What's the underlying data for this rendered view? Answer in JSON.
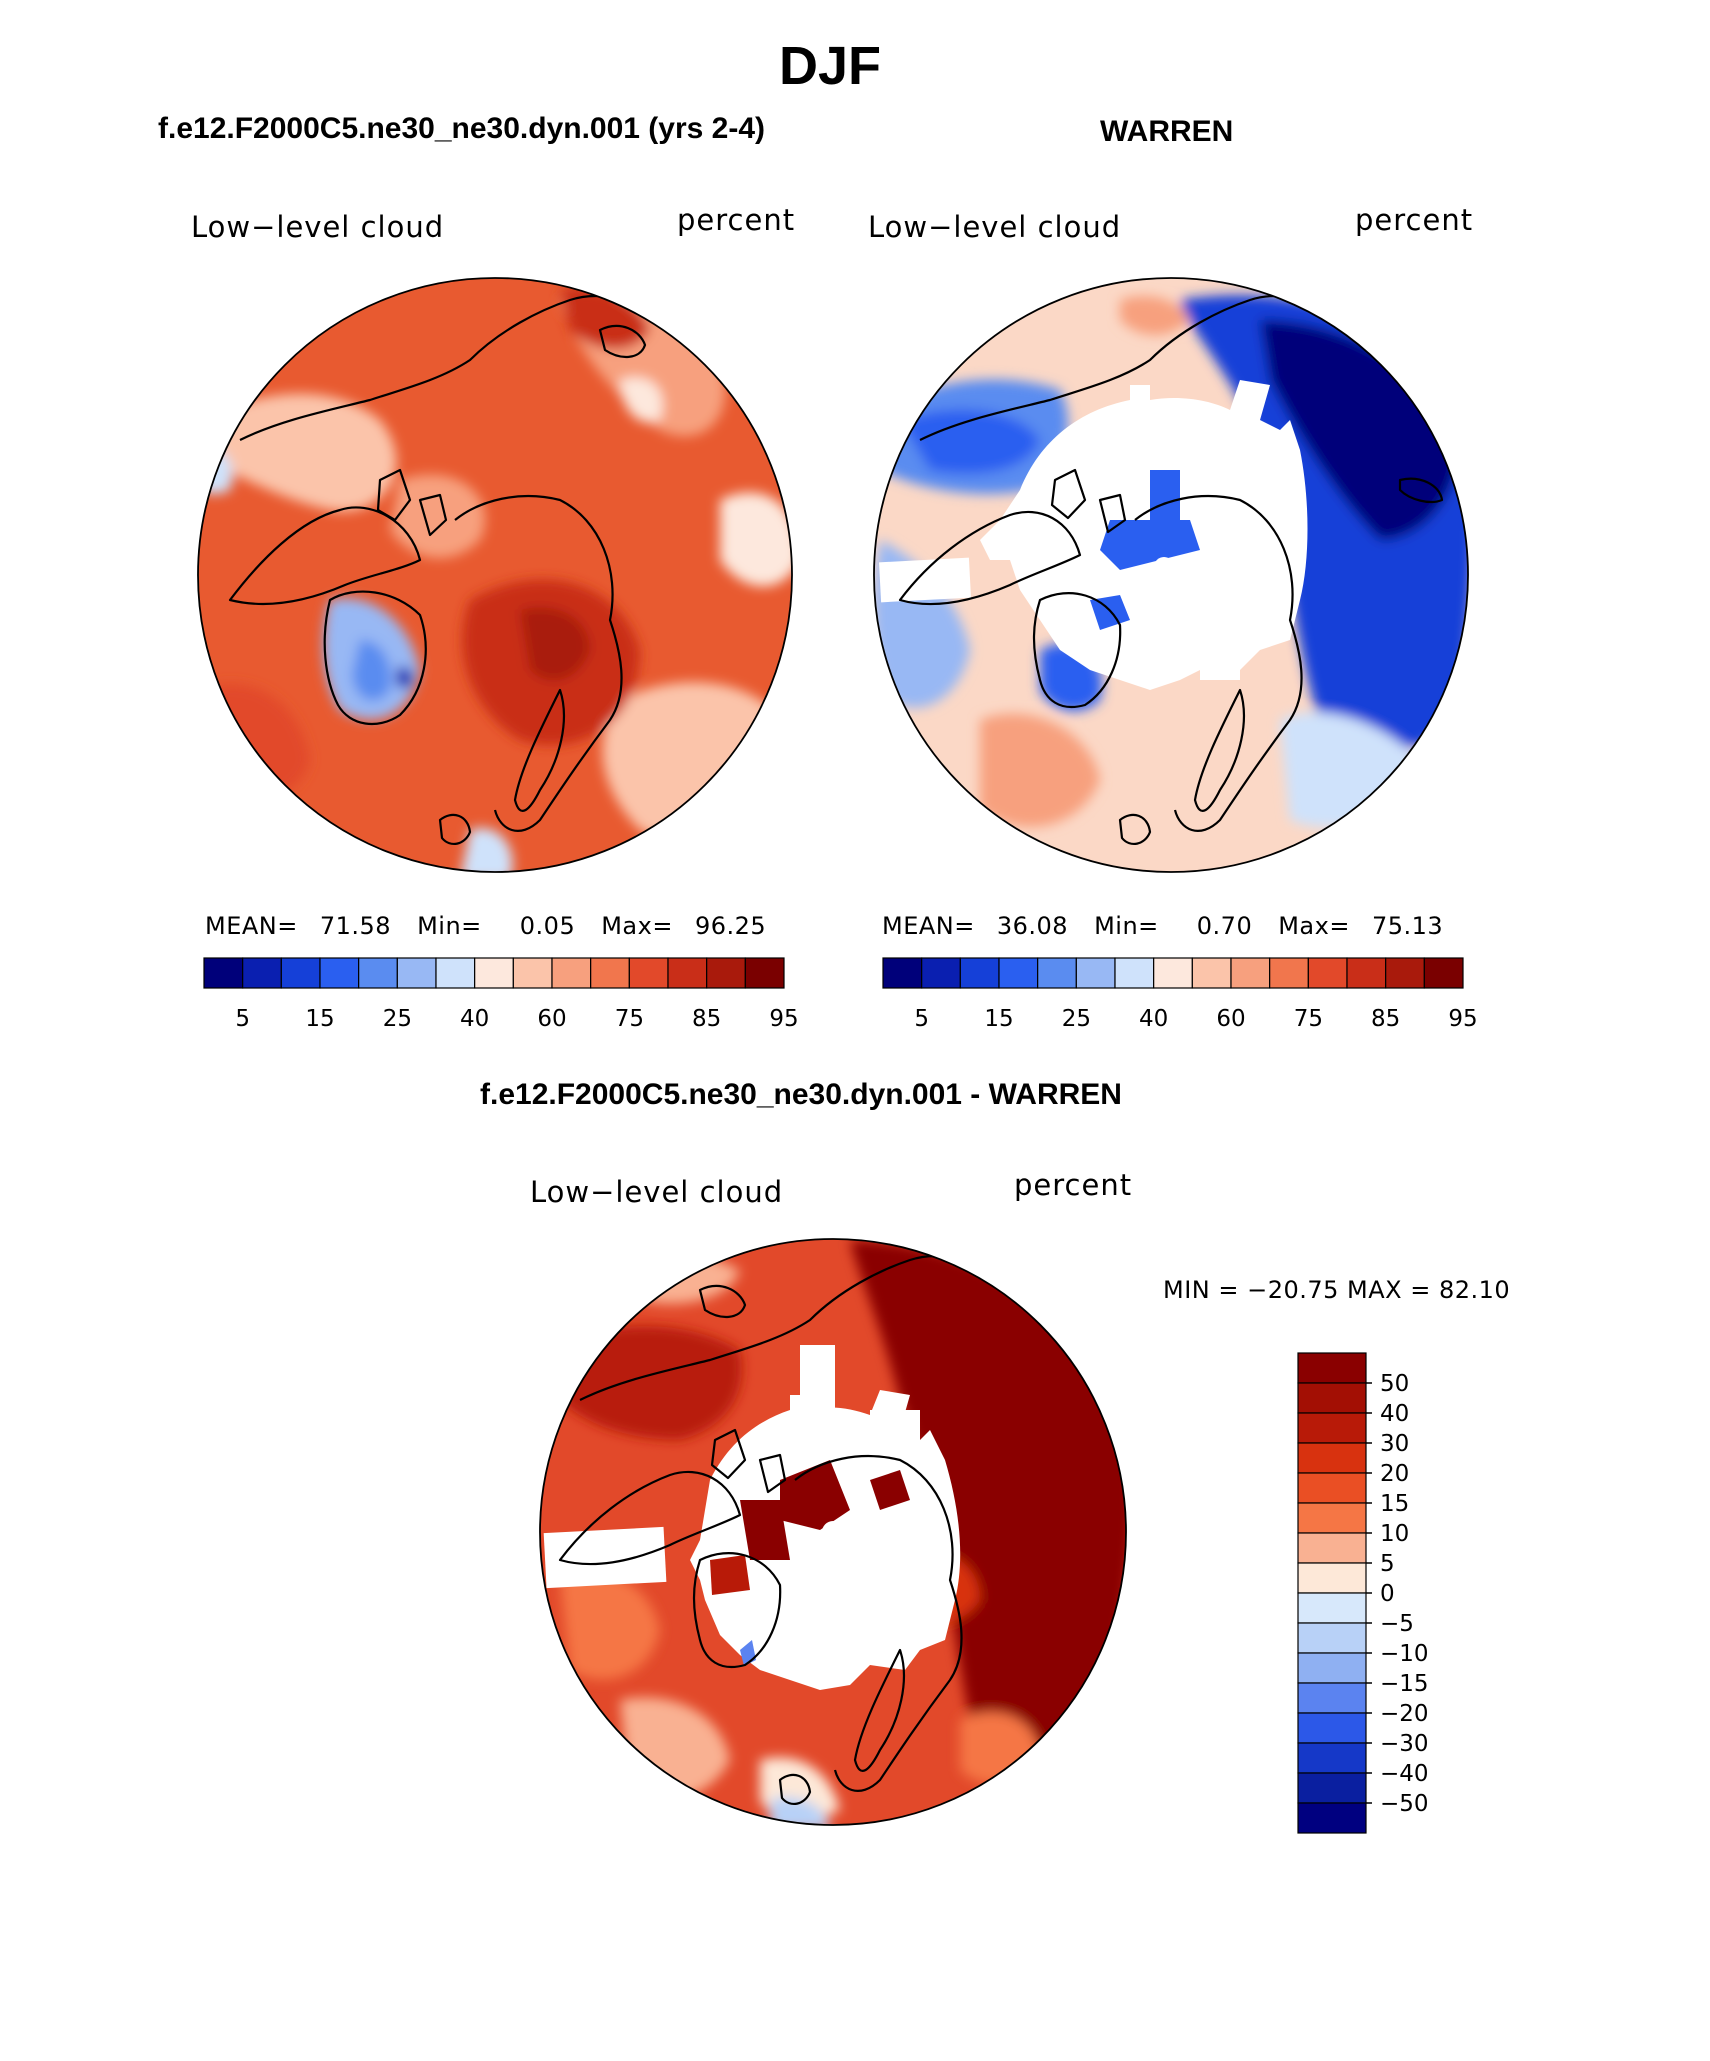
{
  "title": "DJF",
  "panels": [
    {
      "title": "f.e12.F2000C5.ne30_ne30.dyn.001 (yrs 2-4)",
      "left_label": "Low−level cloud",
      "right_label": "percent",
      "stats": {
        "mean_label": "MEAN=",
        "mean": "71.58",
        "min_label": "Min=",
        "min": "0.05",
        "max_label": "Max=",
        "max": "96.25"
      }
    },
    {
      "title": "WARREN",
      "left_label": "Low−level cloud",
      "right_label": "percent",
      "stats": {
        "mean_label": "MEAN=",
        "mean": "36.08",
        "min_label": "Min=",
        "min": "0.70",
        "max_label": "Max=",
        "max": "75.13"
      }
    },
    {
      "title": "f.e12.F2000C5.ne30_ne30.dyn.001 - WARREN",
      "left_label": "Low−level cloud",
      "right_label": "percent",
      "stats": {
        "text": "MIN = −20.75 MAX =   82.10"
      }
    }
  ],
  "colorbar_abs": {
    "tick_labels": [
      "5",
      "15",
      "25",
      "40",
      "60",
      "75",
      "85",
      "95"
    ],
    "colors": [
      "#00007a",
      "#0a1fb0",
      "#1540d8",
      "#2a5ff0",
      "#5a8cf0",
      "#98b8f4",
      "#cfe2fb",
      "#fde8dd",
      "#fbc4aa",
      "#f7a07e",
      "#f1764d",
      "#e2492a",
      "#c92e18",
      "#a91a0c",
      "#7a0000"
    ]
  },
  "colorbar_diff": {
    "tick_labels": [
      "50",
      "40",
      "30",
      "20",
      "15",
      "10",
      "5",
      "0",
      "−5",
      "−10",
      "−15",
      "−20",
      "−30",
      "−40",
      "−50"
    ],
    "colors": [
      "#8a0000",
      "#b81a08",
      "#d8320f",
      "#ea4f24",
      "#f57645",
      "#f9b192",
      "#fde8d8",
      "#d7e8fb",
      "#b8d1f7",
      "#8fb0f2",
      "#5b83f0",
      "#2c58e8",
      "#1538c8",
      "#0a1fa0",
      "#000080"
    ]
  },
  "chart_data": [
    {
      "type": "heatmap",
      "title": "f.e12.F2000C5.ne30_ne30.dyn.001 (yrs 2-4)",
      "variable": "Low−level cloud",
      "units": "percent",
      "projection": "north polar stereographic",
      "stats": {
        "mean": 71.58,
        "min": 0.05,
        "max": 96.25
      },
      "levels": [
        5,
        10,
        15,
        20,
        25,
        30,
        40,
        50,
        60,
        70,
        75,
        80,
        85,
        90,
        95
      ],
      "dominant_range": [
        60,
        95
      ]
    },
    {
      "type": "heatmap",
      "title": "WARREN",
      "variable": "Low−level cloud",
      "units": "percent",
      "projection": "north polar stereographic",
      "stats": {
        "mean": 36.08,
        "min": 0.7,
        "max": 75.13
      },
      "levels": [
        5,
        10,
        15,
        20,
        25,
        30,
        40,
        50,
        60,
        70,
        75,
        80,
        85,
        90,
        95
      ],
      "missing_region": "central Arctic"
    },
    {
      "type": "heatmap",
      "title": "f.e12.F2000C5.ne30_ne30.dyn.001 - WARREN",
      "variable": "Low−level cloud",
      "units": "percent",
      "projection": "north polar stereographic",
      "stats": {
        "min": -20.75,
        "max": 82.1
      },
      "levels": [
        -50,
        -40,
        -30,
        -20,
        -15,
        -10,
        -5,
        0,
        5,
        10,
        15,
        20,
        30,
        40,
        50
      ],
      "missing_region": "central Arctic"
    }
  ]
}
